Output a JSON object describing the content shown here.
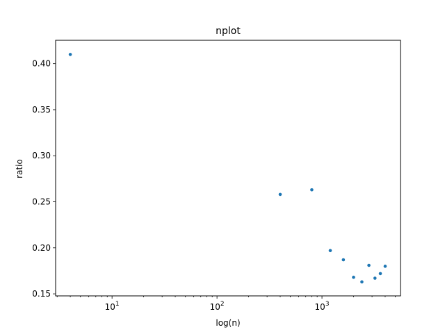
{
  "chart_data": {
    "type": "scatter",
    "title": "nplot",
    "xlabel": "log(n)",
    "ylabel": "ratio",
    "xscale": "log",
    "xlim": [
      2.9,
      5600
    ],
    "ylim": [
      0.1478,
      0.4254
    ],
    "grid": false,
    "marker_color": "#1f77b4",
    "x_ticks": [
      {
        "value": 10,
        "base": "10",
        "exp": "1"
      },
      {
        "value": 100,
        "base": "10",
        "exp": "2"
      },
      {
        "value": 1000,
        "base": "10",
        "exp": "3"
      }
    ],
    "y_ticks": [
      {
        "value": 0.15,
        "label": "0.15"
      },
      {
        "value": 0.2,
        "label": "0.20"
      },
      {
        "value": 0.25,
        "label": "0.25"
      },
      {
        "value": 0.3,
        "label": "0.30"
      },
      {
        "value": 0.35,
        "label": "0.35"
      },
      {
        "value": 0.4,
        "label": "0.40"
      }
    ],
    "points": [
      {
        "x": 4,
        "y": 0.41
      },
      {
        "x": 400,
        "y": 0.258
      },
      {
        "x": 800,
        "y": 0.263
      },
      {
        "x": 1200,
        "y": 0.197
      },
      {
        "x": 1600,
        "y": 0.187
      },
      {
        "x": 2000,
        "y": 0.168
      },
      {
        "x": 2400,
        "y": 0.163
      },
      {
        "x": 2800,
        "y": 0.181
      },
      {
        "x": 3200,
        "y": 0.167
      },
      {
        "x": 3600,
        "y": 0.172
      },
      {
        "x": 4000,
        "y": 0.18
      }
    ]
  }
}
